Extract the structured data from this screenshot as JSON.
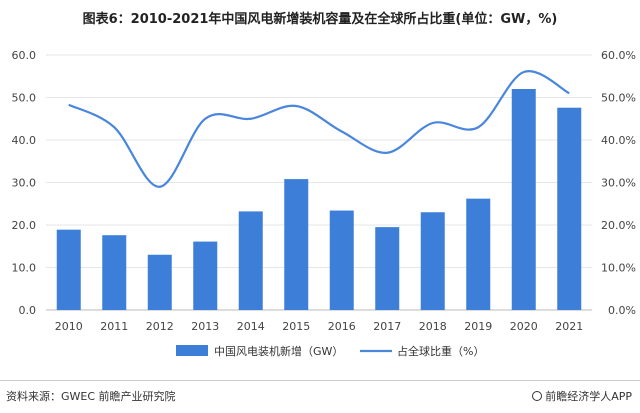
{
  "title": "图表6：2010-2021年中国风电新增装机容量及在全球所占比重(单位：GW，%)",
  "source": "资料来源：GWEC 前瞻产业研究院",
  "brand": "前瞻经济学人APP",
  "colors": {
    "bar": "#3d7fd8",
    "line": "#4a86dc",
    "grid": "#e6e6e6",
    "axis": "#bbbbbb",
    "tick": "#444444"
  },
  "chart_data": {
    "type": "bar+line",
    "categories": [
      "2010",
      "2011",
      "2012",
      "2013",
      "2014",
      "2015",
      "2016",
      "2017",
      "2018",
      "2019",
      "2020",
      "2021"
    ],
    "series": [
      {
        "name": "中国风电装机新增（GW）",
        "type": "bar",
        "axis": "left",
        "values": [
          18.9,
          17.6,
          13.0,
          16.1,
          23.2,
          30.8,
          23.4,
          19.5,
          23.0,
          26.2,
          52.0,
          47.6
        ]
      },
      {
        "name": "占全球比重（%）",
        "type": "line",
        "axis": "right",
        "values": [
          48.3,
          43.0,
          29.0,
          45.0,
          45.0,
          48.0,
          42.0,
          37.0,
          44.0,
          43.0,
          56.0,
          51.0
        ]
      }
    ],
    "left_axis": {
      "min": 0,
      "max": 60,
      "ticks": [
        "0.0",
        "10.0",
        "20.0",
        "30.0",
        "40.0",
        "50.0",
        "60.0"
      ]
    },
    "right_axis": {
      "min": 0,
      "max": 60,
      "ticks": [
        "0.0%",
        "10.0%",
        "20.0%",
        "30.0%",
        "40.0%",
        "50.0%",
        "60.0%"
      ]
    },
    "grid": true,
    "legend_position": "bottom"
  }
}
